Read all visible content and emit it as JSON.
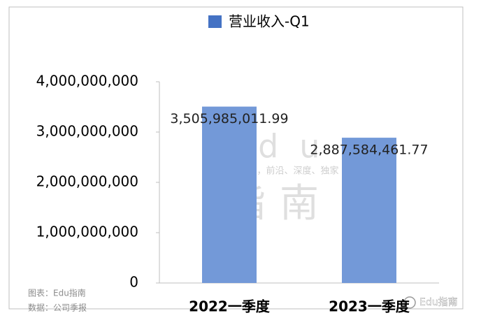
{
  "chart_data": {
    "type": "bar",
    "legend": "营业收入-Q1",
    "categories": [
      "2022一季度",
      "2023一季度"
    ],
    "values": [
      3505985011.99,
      2887584461.77
    ],
    "value_labels": [
      "3,505,985,011.99",
      "2,887,584,461.77"
    ],
    "color": "#7399d8",
    "legend_color": "#4472c4",
    "ylim": [
      0,
      4000000000
    ],
    "yticks": [
      0,
      {
        "value": 1000000000,
        "label": "1,000,000,000"
      },
      {
        "value": 2000000000,
        "label": "2,000,000,000"
      },
      {
        "value": 3000000000,
        "label": "3,000,000,000"
      },
      {
        "value": 4000000000,
        "label": "4,000,000,000"
      }
    ],
    "grid": false,
    "notes": [
      "图表：Edu指南",
      "数据：公司季报"
    ],
    "watermark": {
      "brand": "Edu",
      "slogan": "教育行业，前沿、深度、独家",
      "name": "指南",
      "corner": "Edu指南"
    }
  }
}
